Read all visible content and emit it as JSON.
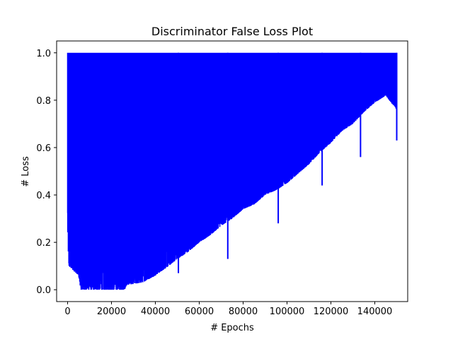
{
  "chart_data": {
    "type": "line",
    "title": "Discriminator False Loss Plot",
    "xlabel": "# Epochs",
    "ylabel": "# Loss",
    "xlim": [
      -5000,
      155000
    ],
    "ylim": [
      -0.05,
      1.05
    ],
    "x_ticks": [
      0,
      20000,
      40000,
      60000,
      80000,
      100000,
      120000,
      140000
    ],
    "y_ticks": [
      0.0,
      0.2,
      0.4,
      0.6,
      0.8,
      1.0
    ],
    "x_tick_labels": [
      "0",
      "20000",
      "40000",
      "60000",
      "80000",
      "100000",
      "120000",
      "140000"
    ],
    "y_tick_labels": [
      "0.0",
      "0.2",
      "0.4",
      "0.6",
      "0.8",
      "1.0"
    ],
    "grid": false,
    "series": [
      {
        "color": "#0000ff",
        "x_range": [
          0,
          150000
        ],
        "upper_value": 1.0,
        "lower_envelope": [
          {
            "x": 0,
            "y": 0.25
          },
          {
            "x": 500,
            "y": 0.1
          },
          {
            "x": 5000,
            "y": 0.06
          },
          {
            "x": 6000,
            "y": 0.0
          },
          {
            "x": 26000,
            "y": 0.0
          },
          {
            "x": 27000,
            "y": 0.02
          },
          {
            "x": 34000,
            "y": 0.03
          },
          {
            "x": 40000,
            "y": 0.06
          },
          {
            "x": 46000,
            "y": 0.1
          },
          {
            "x": 50000,
            "y": 0.13
          },
          {
            "x": 55000,
            "y": 0.16
          },
          {
            "x": 60000,
            "y": 0.2
          },
          {
            "x": 65000,
            "y": 0.23
          },
          {
            "x": 70000,
            "y": 0.27
          },
          {
            "x": 75000,
            "y": 0.3
          },
          {
            "x": 80000,
            "y": 0.34
          },
          {
            "x": 85000,
            "y": 0.36
          },
          {
            "x": 90000,
            "y": 0.4
          },
          {
            "x": 95000,
            "y": 0.42
          },
          {
            "x": 100000,
            "y": 0.45
          },
          {
            "x": 105000,
            "y": 0.49
          },
          {
            "x": 110000,
            "y": 0.53
          },
          {
            "x": 115000,
            "y": 0.58
          },
          {
            "x": 120000,
            "y": 0.62
          },
          {
            "x": 125000,
            "y": 0.67
          },
          {
            "x": 130000,
            "y": 0.7
          },
          {
            "x": 135000,
            "y": 0.75
          },
          {
            "x": 140000,
            "y": 0.79
          },
          {
            "x": 145000,
            "y": 0.82
          },
          {
            "x": 150000,
            "y": 0.76
          }
        ],
        "spikes": [
          {
            "x": 73000,
            "y": 0.13
          },
          {
            "x": 96000,
            "y": 0.28
          },
          {
            "x": 50500,
            "y": 0.07
          },
          {
            "x": 133500,
            "y": 0.56
          },
          {
            "x": 150000,
            "y": 0.63
          },
          {
            "x": 116000,
            "y": 0.44
          }
        ]
      }
    ]
  }
}
